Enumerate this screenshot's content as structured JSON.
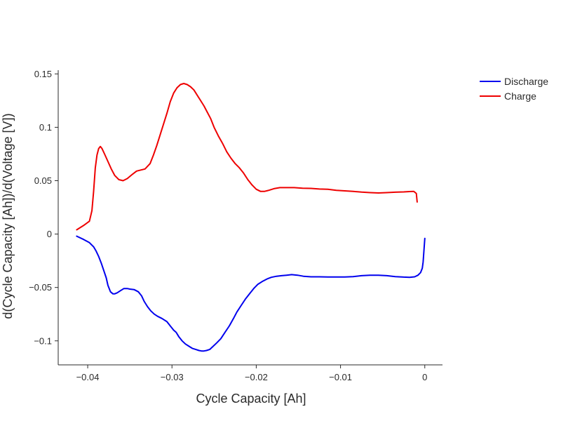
{
  "chart_data": {
    "type": "line",
    "title": "",
    "xlabel": "Cycle Capacity [Ah]",
    "ylabel": "d(Cycle Capacity [Ah])/d(Voltage [V])",
    "xlim": [
      -0.0435,
      0.0021
    ],
    "ylim": [
      -0.1225,
      0.1535
    ],
    "x_ticks": [
      -0.04,
      -0.03,
      -0.02,
      -0.01,
      0
    ],
    "x_tick_labels": [
      "−0.04",
      "−0.03",
      "−0.02",
      "−0.01",
      "0"
    ],
    "y_ticks": [
      -0.1,
      -0.05,
      0,
      0.05,
      0.1,
      0.15
    ],
    "y_tick_labels": [
      "−0.1",
      "−0.05",
      "0",
      "0.05",
      "0.1",
      "0.15"
    ],
    "grid": false,
    "legend_position": "top-right",
    "series": [
      {
        "name": "Discharge",
        "color": "#0000ee",
        "x": [
          -0.0413,
          -0.0405,
          -0.0398,
          -0.0393,
          -0.039,
          -0.0387,
          -0.0384,
          -0.0381,
          -0.0378,
          -0.0376,
          -0.0373,
          -0.037,
          -0.0368,
          -0.0365,
          -0.0361,
          -0.0357,
          -0.0353,
          -0.035,
          -0.0345,
          -0.034,
          -0.0336,
          -0.0333,
          -0.0329,
          -0.0325,
          -0.0321,
          -0.0317,
          -0.0312,
          -0.0306,
          -0.0302,
          -0.0298,
          -0.0295,
          -0.0292,
          -0.0288,
          -0.0284,
          -0.028,
          -0.0276,
          -0.0272,
          -0.0268,
          -0.0265,
          -0.0262,
          -0.0259,
          -0.0255,
          -0.0251,
          -0.0247,
          -0.0242,
          -0.0237,
          -0.0232,
          -0.0227,
          -0.0223,
          -0.0218,
          -0.0213,
          -0.0208,
          -0.0203,
          -0.0198,
          -0.0193,
          -0.0187,
          -0.0182,
          -0.0176,
          -0.017,
          -0.0164,
          -0.0158,
          -0.0151,
          -0.0144,
          -0.0135,
          -0.0125,
          -0.0115,
          -0.0105,
          -0.0095,
          -0.0085,
          -0.0075,
          -0.0065,
          -0.0055,
          -0.0045,
          -0.0035,
          -0.0025,
          -0.0018,
          -0.0012,
          -0.0008,
          -0.0005,
          -0.0003,
          -0.0002,
          -0.0001,
          0
        ],
        "y": [
          -0.002,
          -0.005,
          -0.008,
          -0.012,
          -0.016,
          -0.021,
          -0.027,
          -0.034,
          -0.041,
          -0.048,
          -0.054,
          -0.056,
          -0.056,
          -0.055,
          -0.053,
          -0.051,
          -0.051,
          -0.0515,
          -0.052,
          -0.054,
          -0.058,
          -0.063,
          -0.068,
          -0.072,
          -0.075,
          -0.077,
          -0.079,
          -0.082,
          -0.086,
          -0.09,
          -0.092,
          -0.096,
          -0.1,
          -0.103,
          -0.105,
          -0.107,
          -0.108,
          -0.109,
          -0.1095,
          -0.1095,
          -0.109,
          -0.108,
          -0.105,
          -0.102,
          -0.098,
          -0.092,
          -0.086,
          -0.079,
          -0.073,
          -0.067,
          -0.061,
          -0.056,
          -0.051,
          -0.047,
          -0.0445,
          -0.042,
          -0.0405,
          -0.0395,
          -0.039,
          -0.0385,
          -0.038,
          -0.0385,
          -0.0395,
          -0.04,
          -0.04,
          -0.0402,
          -0.0402,
          -0.0402,
          -0.0398,
          -0.039,
          -0.0385,
          -0.0385,
          -0.039,
          -0.0398,
          -0.0403,
          -0.0405,
          -0.04,
          -0.0385,
          -0.036,
          -0.032,
          -0.026,
          -0.015,
          -0.004
        ]
      },
      {
        "name": "Charge",
        "color": "#ee0000",
        "x": [
          -0.0413,
          -0.0405,
          -0.0398,
          -0.0395,
          -0.0393,
          -0.0391,
          -0.0389,
          -0.0387,
          -0.0385,
          -0.0383,
          -0.038,
          -0.0376,
          -0.0372,
          -0.0368,
          -0.0363,
          -0.0358,
          -0.0353,
          -0.0347,
          -0.0342,
          -0.0337,
          -0.0332,
          -0.0326,
          -0.0322,
          -0.0318,
          -0.0314,
          -0.031,
          -0.0306,
          -0.0302,
          -0.0298,
          -0.0294,
          -0.029,
          -0.0286,
          -0.0282,
          -0.0278,
          -0.0274,
          -0.027,
          -0.0266,
          -0.0262,
          -0.0258,
          -0.0254,
          -0.025,
          -0.0245,
          -0.024,
          -0.0235,
          -0.023,
          -0.0225,
          -0.022,
          -0.0215,
          -0.021,
          -0.0205,
          -0.02,
          -0.0195,
          -0.019,
          -0.0185,
          -0.0179,
          -0.0172,
          -0.0165,
          -0.0155,
          -0.0145,
          -0.0135,
          -0.0125,
          -0.0115,
          -0.0105,
          -0.0095,
          -0.0085,
          -0.0075,
          -0.0065,
          -0.0055,
          -0.0045,
          -0.0035,
          -0.0025,
          -0.0018,
          -0.0013,
          -0.001,
          -0.0009
        ],
        "y": [
          0.004,
          0.008,
          0.012,
          0.022,
          0.04,
          0.062,
          0.074,
          0.08,
          0.082,
          0.08,
          0.075,
          0.068,
          0.061,
          0.055,
          0.051,
          0.05,
          0.052,
          0.056,
          0.059,
          0.06,
          0.061,
          0.066,
          0.074,
          0.083,
          0.093,
          0.103,
          0.113,
          0.124,
          0.132,
          0.137,
          0.14,
          0.141,
          0.14,
          0.138,
          0.135,
          0.13,
          0.125,
          0.12,
          0.114,
          0.108,
          0.1,
          0.092,
          0.085,
          0.077,
          0.071,
          0.066,
          0.062,
          0.057,
          0.051,
          0.046,
          0.042,
          0.04,
          0.04,
          0.041,
          0.0425,
          0.0435,
          0.0435,
          0.0435,
          0.043,
          0.0428,
          0.0422,
          0.042,
          0.041,
          0.0405,
          0.04,
          0.0393,
          0.0388,
          0.0385,
          0.0388,
          0.0392,
          0.0395,
          0.0398,
          0.04,
          0.038,
          0.03
        ]
      }
    ]
  }
}
